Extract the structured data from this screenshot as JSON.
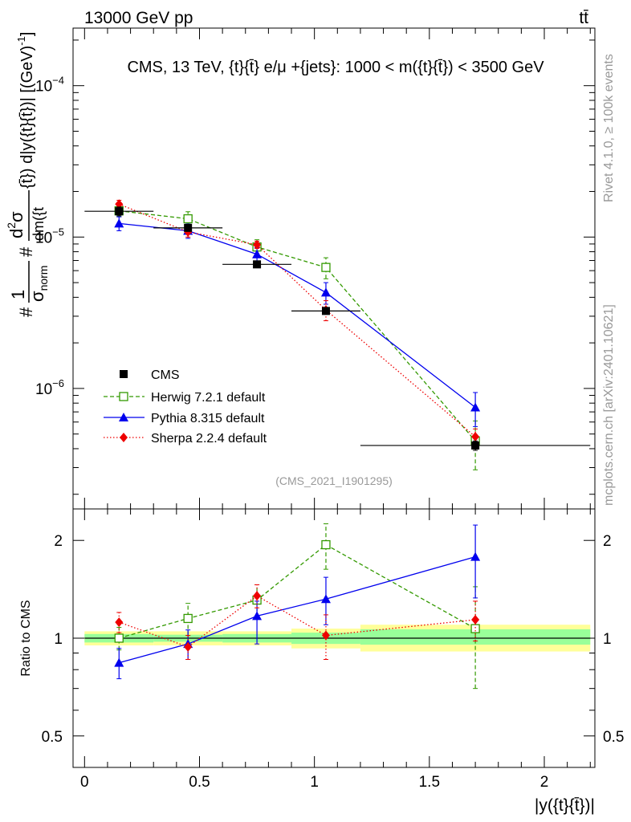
{
  "header": {
    "left": "13000 GeV pp",
    "right": "tt̄"
  },
  "side_labels": {
    "rivet": "Rivet 4.1.0, ≥ 100k events",
    "mcplots": "mcplots.cern.ch [arXiv:2401.10621]"
  },
  "chart_data": [
    {
      "type": "scatter",
      "panel": "main",
      "title": "CMS, 13 TeV, {t}{t̄} e/μ +{jets}: 1000 < m({t}{t̄}) < 3500 GeV",
      "ylabel": "#1/σnorm #d²σ/dm({t{t̄}) d|y({t}{t̄})| [(GeV)⁻¹]",
      "ylabel_parts": {
        "prefix": "#",
        "one": "1",
        "sigma": "σ",
        "norm": "norm",
        "hash2": "#",
        "d2": "d",
        "sup2": "2",
        "sig2": "σ",
        "den": "dm({t",
        "after_frac": "{t̄}) d|y({t}{t̄})| [(GeV)",
        "minus1": "-1",
        "close": "]"
      },
      "xlabel": "|y({t}{t̄})|",
      "yscale": "log",
      "ylim": [
        1.6e-07,
        0.00024
      ],
      "xlim": [
        -0.05,
        2.22
      ],
      "y_ticks": [
        {
          "value": 1e-06,
          "base": "10",
          "exp": "−6"
        },
        {
          "value": 1e-05,
          "base": "10",
          "exp": "−5"
        },
        {
          "value": 0.0001,
          "base": "10",
          "exp": "−4"
        }
      ],
      "watermark": "(CMS_2021_I1901295)",
      "series": [
        {
          "name": "CMS",
          "key": "data",
          "color": "#000000",
          "marker": "square-filled",
          "line": "none",
          "x": [
            0.15,
            0.45,
            0.75,
            1.05,
            1.7
          ],
          "xerr": [
            0.15,
            0.15,
            0.15,
            0.15,
            0.5
          ],
          "y": [
            1.48e-05,
            1.15e-05,
            6.6e-06,
            3.25e-06,
            4.2e-07
          ],
          "yerr": [
            [
              1.38e-05,
              1.58e-05
            ],
            [
              1.1e-05,
              1.2e-05
            ],
            [
              6.3e-06,
              6.9e-06
            ],
            [
              3.1e-06,
              3.4e-06
            ],
            [
              3.9e-07,
              4.5e-07
            ]
          ]
        },
        {
          "name": "Herwig 7.2.1 default",
          "key": "herwig",
          "color": "#339900",
          "marker": "square-open",
          "line": "dashed",
          "x": [
            0.15,
            0.45,
            0.75,
            1.05,
            1.7
          ],
          "y": [
            1.49e-05,
            1.32e-05,
            8.6e-06,
            6.3e-06,
            4.5e-07
          ],
          "yerr": [
            [
              1.36e-05,
              1.62e-05
            ],
            [
              1.17e-05,
              1.47e-05
            ],
            [
              7.6e-06,
              9.6e-06
            ],
            [
              5.3e-06,
              7.3e-06
            ],
            [
              2.9e-07,
              6.1e-07
            ]
          ]
        },
        {
          "name": "Pythia 8.315 default",
          "key": "pythia",
          "color": "#0000ee",
          "marker": "triangle",
          "line": "solid",
          "x": [
            0.15,
            0.45,
            0.75,
            1.05,
            1.7
          ],
          "y": [
            1.23e-05,
            1.1e-05,
            7.7e-06,
            4.3e-06,
            7.5e-07
          ],
          "yerr": [
            [
              1.1e-05,
              1.36e-05
            ],
            [
              9.8e-06,
              1.22e-05
            ],
            [
              6.9e-06,
              8.5e-06
            ],
            [
              3.6e-06,
              5e-06
            ],
            [
              5.6e-07,
              9.4e-07
            ]
          ]
        },
        {
          "name": "Sherpa 2.2.4 default",
          "key": "sherpa",
          "color": "#ee0000",
          "marker": "diamond",
          "line": "dotted",
          "x": [
            0.15,
            0.45,
            0.75,
            1.05,
            1.7
          ],
          "y": [
            1.65e-05,
            1.08e-05,
            8.9e-06,
            3.3e-06,
            4.8e-07
          ],
          "yerr": [
            [
              1.55e-05,
              1.75e-05
            ],
            [
              1e-05,
              1.16e-05
            ],
            [
              8.4e-06,
              9.4e-06
            ],
            [
              2.8e-06,
              3.8e-06
            ],
            [
              4.2e-07,
              5.4e-07
            ]
          ]
        }
      ]
    },
    {
      "type": "scatter",
      "panel": "ratio",
      "ylabel": "Ratio to CMS",
      "xlabel": "|y({t}{t̄})|",
      "yscale": "log",
      "ylim": [
        0.4,
        2.5
      ],
      "xlim": [
        -0.05,
        2.22
      ],
      "x_ticks": [
        {
          "value": 0,
          "label": "0"
        },
        {
          "value": 0.5,
          "label": "0.5"
        },
        {
          "value": 1,
          "label": "1"
        },
        {
          "value": 1.5,
          "label": "1.5"
        },
        {
          "value": 2,
          "label": "2"
        }
      ],
      "y_ticks": [
        {
          "value": 0.5,
          "label": "0.5"
        },
        {
          "value": 1,
          "label": "1"
        },
        {
          "value": 2,
          "label": "2"
        }
      ],
      "bands": [
        {
          "x0": 0.0,
          "x1": 0.3,
          "stat": [
            0.97,
            1.03
          ],
          "total": [
            0.95,
            1.05
          ]
        },
        {
          "x0": 0.3,
          "x1": 0.6,
          "stat": [
            0.975,
            1.025
          ],
          "total": [
            0.95,
            1.05
          ]
        },
        {
          "x0": 0.6,
          "x1": 0.9,
          "stat": [
            0.97,
            1.03
          ],
          "total": [
            0.95,
            1.05
          ]
        },
        {
          "x0": 0.9,
          "x1": 1.2,
          "stat": [
            0.96,
            1.04
          ],
          "total": [
            0.93,
            1.07
          ]
        },
        {
          "x0": 1.2,
          "x1": 2.2,
          "stat": [
            0.955,
            1.065
          ],
          "total": [
            0.91,
            1.1
          ]
        }
      ],
      "series": [
        {
          "name": "Herwig 7.2.1 default",
          "key": "herwig",
          "color": "#339900",
          "marker": "square-open",
          "line": "dashed",
          "x": [
            0.15,
            0.45,
            0.75,
            1.05,
            1.7
          ],
          "y": [
            1.0,
            1.15,
            1.31,
            1.94,
            1.07
          ],
          "yerr": [
            [
              0.92,
              1.08
            ],
            [
              1.02,
              1.28
            ],
            [
              1.16,
              1.46
            ],
            [
              1.63,
              2.25
            ],
            [
              0.7,
              1.44
            ]
          ]
        },
        {
          "name": "Pythia 8.315 default",
          "key": "pythia",
          "color": "#0000ee",
          "marker": "triangle",
          "line": "solid",
          "x": [
            0.15,
            0.45,
            0.75,
            1.05,
            1.7
          ],
          "y": [
            0.84,
            0.96,
            1.17,
            1.32,
            1.78
          ],
          "yerr": [
            [
              0.75,
              0.93
            ],
            [
              0.86,
              1.06
            ],
            [
              0.96,
              1.3
            ],
            [
              1.1,
              1.54
            ],
            [
              1.33,
              2.23
            ]
          ]
        },
        {
          "name": "Sherpa 2.2.4 default",
          "key": "sherpa",
          "color": "#ee0000",
          "marker": "diamond",
          "line": "dotted",
          "x": [
            0.15,
            0.45,
            0.75,
            1.05,
            1.7
          ],
          "y": [
            1.12,
            0.94,
            1.35,
            1.02,
            1.14
          ],
          "yerr": [
            [
              1.04,
              1.2
            ],
            [
              0.86,
              1.02
            ],
            [
              1.24,
              1.46
            ],
            [
              0.86,
              1.18
            ],
            [
              0.98,
              1.3
            ]
          ]
        }
      ]
    }
  ]
}
